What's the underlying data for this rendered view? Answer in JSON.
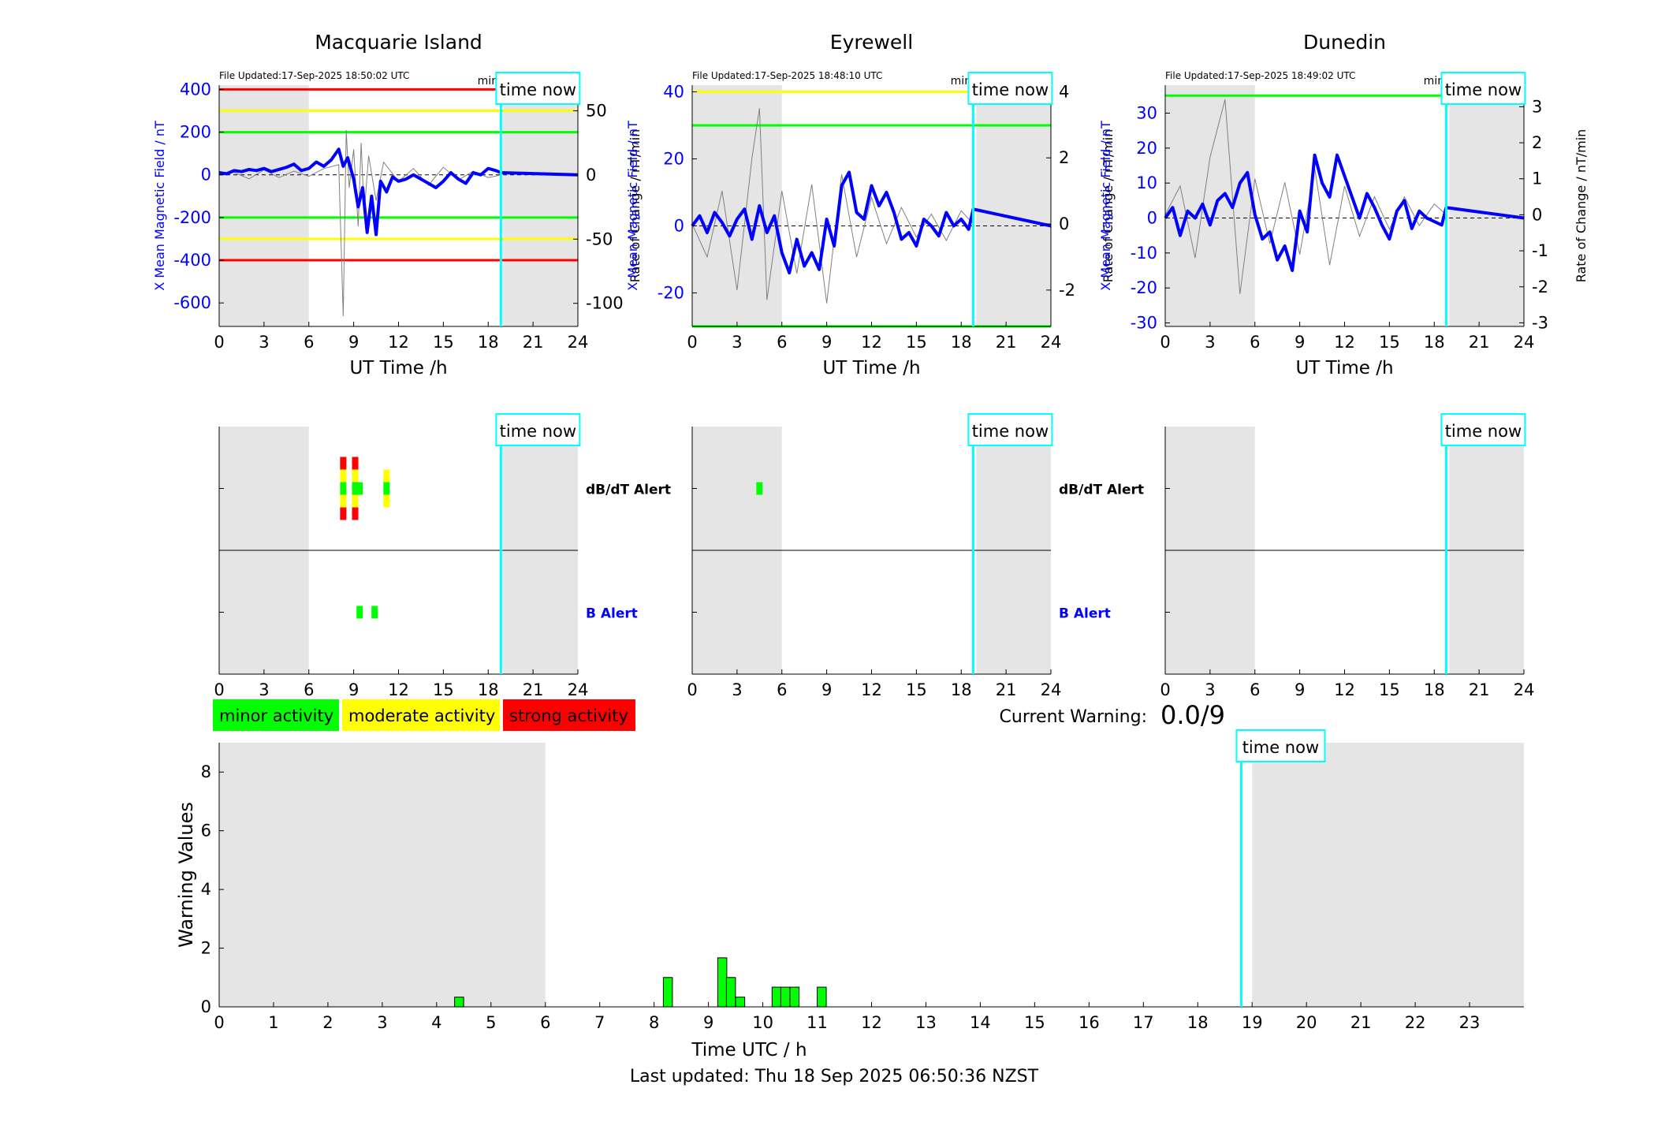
{
  "page": {
    "last_updated": "Last updated: Thu 18 Sep 2025 06:50:36 NZST",
    "current_warning_label": "Current Warning:",
    "current_warning_value": "0.0/9",
    "time_now_label": "time now",
    "legend": [
      {
        "label": "minor activity",
        "color": "#00ff00"
      },
      {
        "label": "moderate activity",
        "color": "#ffff00"
      },
      {
        "label": "strong activity",
        "color": "#ff0000"
      }
    ],
    "colors": {
      "field": "#0000ff",
      "roc": "#808080",
      "now_line": "#00ffff",
      "night": "#e5e5e5",
      "red": "#ff0000",
      "yellow": "#ffff00",
      "green": "#00ff00",
      "dbdt_label": "#000000",
      "b_label": "#0000ff"
    }
  },
  "chart_data": [
    {
      "type": "line",
      "id": "macquarie",
      "title": "Macquarie Island",
      "file_updated": "File Updated:17-Sep-2025 18:50:02 UTC",
      "resolution": "minute resolution",
      "xlabel": "UT Time /h",
      "ylabel_left": "X Mean Magnetic Field / nT",
      "ylabel_right": "Rate of Change / nT/min",
      "xlim": [
        0,
        24
      ],
      "ylim_left": [
        -710,
        420
      ],
      "ylim_right": [
        -118,
        70
      ],
      "xticks": [
        0,
        3,
        6,
        9,
        12,
        15,
        18,
        21,
        24
      ],
      "yticks_left": [
        400,
        200,
        0,
        -200,
        -400,
        -600
      ],
      "yticks_right": [
        50,
        0,
        -50,
        -100
      ],
      "time_now": 18.85,
      "night_shading": [
        [
          0,
          6
        ],
        [
          19,
          24
        ]
      ],
      "thresholds": [
        {
          "value": 400,
          "color": "red"
        },
        {
          "value": 300,
          "color": "yellow"
        },
        {
          "value": 200,
          "color": "green"
        },
        {
          "value": -200,
          "color": "green"
        },
        {
          "value": -300,
          "color": "yellow"
        },
        {
          "value": -400,
          "color": "red"
        }
      ],
      "field_series": {
        "name": "X Mean Magnetic Field",
        "x": [
          0,
          0.5,
          1,
          1.5,
          2,
          2.5,
          3,
          3.5,
          4,
          4.5,
          5,
          5.5,
          6,
          6.5,
          7,
          7.5,
          8,
          8.3,
          8.6,
          9,
          9.3,
          9.6,
          9.9,
          10.2,
          10.5,
          10.8,
          11.2,
          11.6,
          12,
          12.5,
          13,
          13.5,
          14,
          14.5,
          15,
          15.5,
          16,
          16.5,
          17,
          17.5,
          18,
          18.5,
          18.85,
          24
        ],
        "y": [
          10,
          5,
          20,
          15,
          25,
          20,
          30,
          15,
          25,
          35,
          50,
          20,
          30,
          60,
          40,
          70,
          120,
          40,
          80,
          -20,
          -150,
          -60,
          -270,
          -100,
          -280,
          -30,
          -80,
          -10,
          -30,
          -20,
          0,
          -20,
          -40,
          -60,
          -30,
          10,
          -20,
          -40,
          10,
          0,
          30,
          20,
          10,
          0
        ]
      },
      "roc_series": {
        "name": "Rate of Change",
        "x": [
          0,
          1,
          2,
          3,
          4,
          5,
          6,
          7,
          8,
          8.3,
          8.5,
          8.7,
          9,
          9.3,
          9.5,
          9.7,
          10,
          10.5,
          11,
          12,
          13,
          14,
          15,
          16,
          17,
          18,
          18.85
        ],
        "y": [
          0,
          2,
          -3,
          4,
          -2,
          3,
          -1,
          5,
          8,
          -110,
          35,
          -10,
          20,
          -40,
          25,
          -30,
          15,
          -20,
          10,
          -5,
          5,
          -8,
          6,
          -4,
          3,
          -2,
          0
        ]
      }
    },
    {
      "type": "line",
      "id": "eyrewell",
      "title": "Eyrewell",
      "file_updated": "File Updated:17-Sep-2025 18:48:10 UTC",
      "resolution": "minute resolution",
      "xlabel": "UT Time /h",
      "ylabel_left": "X Mean Magnetic Field / nT",
      "ylabel_right": "Rate of Change / nT/min",
      "xlim": [
        0,
        24
      ],
      "ylim_left": [
        -30,
        42
      ],
      "ylim_right": [
        -3.1,
        4.2
      ],
      "xticks": [
        0,
        3,
        6,
        9,
        12,
        15,
        18,
        21,
        24
      ],
      "yticks_left": [
        40,
        20,
        0,
        -20
      ],
      "yticks_right": [
        4,
        2,
        0,
        -2
      ],
      "time_now": 18.8,
      "night_shading": [
        [
          0,
          6
        ],
        [
          19,
          24
        ]
      ],
      "thresholds": [
        {
          "value": 40,
          "color": "yellow"
        },
        {
          "value": 30,
          "color": "green"
        },
        {
          "value": -30,
          "color": "green"
        }
      ],
      "field_series": {
        "name": "X Mean Magnetic Field",
        "x": [
          0,
          0.5,
          1,
          1.5,
          2,
          2.5,
          3,
          3.5,
          4,
          4.5,
          5,
          5.5,
          6,
          6.5,
          7,
          7.5,
          8,
          8.5,
          9,
          9.5,
          10,
          10.5,
          11,
          11.5,
          12,
          12.5,
          13,
          13.5,
          14,
          14.5,
          15,
          15.5,
          16,
          16.5,
          17,
          17.5,
          18,
          18.5,
          18.8,
          24
        ],
        "y": [
          0,
          3,
          -2,
          4,
          1,
          -3,
          2,
          5,
          -4,
          6,
          -2,
          3,
          -8,
          -14,
          -4,
          -12,
          -8,
          -13,
          2,
          -6,
          12,
          16,
          4,
          2,
          12,
          6,
          10,
          4,
          -4,
          -2,
          -6,
          2,
          0,
          -3,
          4,
          0,
          2,
          -1,
          5,
          0
        ]
      },
      "roc_series": {
        "name": "Rate of Change",
        "x": [
          0,
          1,
          2,
          3,
          4,
          4.5,
          5,
          6,
          7,
          8,
          9,
          10,
          11,
          12,
          13,
          14,
          15,
          16,
          17,
          18,
          18.8
        ],
        "y": [
          0,
          -1,
          1,
          -2,
          2,
          3.5,
          -2.3,
          1,
          -1.5,
          1.2,
          -2.4,
          1.5,
          -1,
          0.8,
          -0.6,
          0.5,
          -0.4,
          0.3,
          -0.5,
          0.4,
          0
        ]
      }
    },
    {
      "type": "line",
      "id": "dunedin",
      "title": "Dunedin",
      "file_updated": "File Updated:17-Sep-2025 18:49:02 UTC",
      "resolution": "minute resolution",
      "xlabel": "UT Time /h",
      "ylabel_left": "X Mean Magnetic Field / nT",
      "ylabel_right": "Rate of Change / nT/min",
      "xlim": [
        0,
        24
      ],
      "ylim_left": [
        -31,
        38
      ],
      "ylim_right": [
        -3.1,
        3.6
      ],
      "xticks": [
        0,
        3,
        6,
        9,
        12,
        15,
        18,
        21,
        24
      ],
      "yticks_left": [
        30,
        20,
        10,
        0,
        -10,
        -20,
        -30
      ],
      "yticks_right": [
        3,
        2,
        1,
        0,
        -1,
        -2,
        -3
      ],
      "time_now": 18.8,
      "night_shading": [
        [
          0,
          6
        ],
        [
          19,
          24
        ]
      ],
      "thresholds": [
        {
          "value": 35,
          "color": "green"
        }
      ],
      "field_series": {
        "name": "X Mean Magnetic Field",
        "x": [
          0,
          0.5,
          1,
          1.5,
          2,
          2.5,
          3,
          3.5,
          4,
          4.5,
          5,
          5.5,
          6,
          6.5,
          7,
          7.5,
          8,
          8.5,
          9,
          9.5,
          10,
          10.5,
          11,
          11.5,
          12,
          12.5,
          13,
          13.5,
          14,
          14.5,
          15,
          15.5,
          16,
          16.5,
          17,
          17.5,
          18,
          18.5,
          18.8,
          24
        ],
        "y": [
          0,
          3,
          -5,
          2,
          0,
          4,
          -2,
          5,
          7,
          3,
          10,
          13,
          1,
          -6,
          -4,
          -12,
          -8,
          -15,
          2,
          -4,
          18,
          10,
          6,
          18,
          12,
          6,
          0,
          7,
          3,
          -2,
          -6,
          2,
          5,
          -3,
          2,
          0,
          -1,
          -2,
          3,
          0
        ]
      },
      "roc_series": {
        "name": "Rate of Change",
        "x": [
          0,
          1,
          2,
          3,
          4,
          5,
          6,
          7,
          8,
          9,
          10,
          11,
          12,
          13,
          14,
          15,
          16,
          17,
          18,
          18.8
        ],
        "y": [
          0,
          0.8,
          -1.2,
          1.6,
          3.2,
          -2.2,
          1,
          -0.8,
          0.9,
          -1.1,
          1.3,
          -1.4,
          0.8,
          -0.6,
          0.5,
          -0.4,
          0.5,
          -0.3,
          0.3,
          0
        ]
      }
    },
    {
      "type": "bar",
      "id": "macquarie_alerts",
      "xlim": [
        0,
        24
      ],
      "xticks": [
        0,
        3,
        6,
        9,
        12,
        15,
        18,
        21,
        24
      ],
      "time_now": 18.85,
      "night_shading": [
        [
          0,
          6
        ],
        [
          19,
          24
        ]
      ],
      "rows": [
        {
          "label": "dB/dT Alert",
          "color_key": "dbdt_label",
          "bars": [
            {
              "x": 8.3,
              "level": "strong"
            },
            {
              "x": 9.1,
              "level": "strong"
            },
            {
              "x": 9.4,
              "level": "minor"
            },
            {
              "x": 11.2,
              "level": "moderate"
            }
          ]
        },
        {
          "label": "B Alert",
          "color_key": "b_label",
          "bars": [
            {
              "x": 9.4,
              "level": "minor"
            },
            {
              "x": 10.4,
              "level": "minor"
            }
          ]
        }
      ]
    },
    {
      "type": "bar",
      "id": "eyrewell_alerts",
      "xlim": [
        0,
        24
      ],
      "xticks": [
        0,
        3,
        6,
        9,
        12,
        15,
        18,
        21,
        24
      ],
      "time_now": 18.8,
      "night_shading": [
        [
          0,
          6
        ],
        [
          19,
          24
        ]
      ],
      "rows": [
        {
          "label": "dB/dT Alert",
          "color_key": "dbdt_label",
          "bars": [
            {
              "x": 4.5,
              "level": "minor"
            }
          ]
        },
        {
          "label": "B Alert",
          "color_key": "b_label",
          "bars": []
        }
      ]
    },
    {
      "type": "bar",
      "id": "dunedin_alerts",
      "xlim": [
        0,
        24
      ],
      "xticks": [
        0,
        3,
        6,
        9,
        12,
        15,
        18,
        21,
        24
      ],
      "time_now": 18.8,
      "night_shading": [
        [
          0,
          6
        ],
        [
          19,
          24
        ]
      ],
      "rows": [
        {
          "label": "",
          "color_key": "dbdt_label",
          "bars": []
        },
        {
          "label": "",
          "color_key": "b_label",
          "bars": []
        }
      ]
    },
    {
      "type": "bar",
      "id": "warning_values",
      "xlabel": "Time UTC / h",
      "ylabel": "Warning Values",
      "xlim": [
        0,
        24
      ],
      "ylim": [
        0,
        9
      ],
      "xticks": [
        0,
        1,
        2,
        3,
        4,
        5,
        6,
        7,
        8,
        9,
        10,
        11,
        12,
        13,
        14,
        15,
        16,
        17,
        18,
        19,
        20,
        21,
        22,
        23
      ],
      "yticks": [
        0,
        2,
        4,
        6,
        8
      ],
      "time_now": 18.8,
      "night_shading": [
        [
          0,
          6
        ],
        [
          19,
          24
        ]
      ],
      "bar_width": 0.167,
      "bars": [
        {
          "x": 4.33,
          "value": 0.33
        },
        {
          "x": 8.17,
          "value": 1.0
        },
        {
          "x": 9.17,
          "value": 1.67
        },
        {
          "x": 9.33,
          "value": 1.0
        },
        {
          "x": 9.5,
          "value": 0.33
        },
        {
          "x": 10.17,
          "value": 0.67
        },
        {
          "x": 10.33,
          "value": 0.67
        },
        {
          "x": 10.5,
          "value": 0.67
        },
        {
          "x": 11.0,
          "value": 0.67
        }
      ]
    }
  ]
}
